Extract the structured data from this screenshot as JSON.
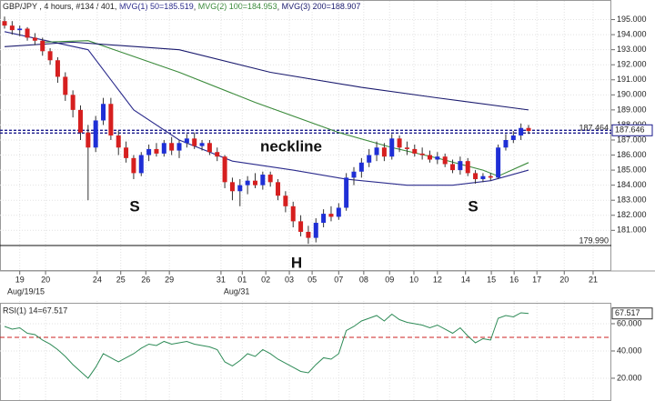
{
  "chart_data": [
    {
      "type": "candlestick",
      "title": "GBP/JPY , 4 hours, #134 / 401,",
      "up_color": "#1f2fd6",
      "down_color": "#d61f1f",
      "candles": {
        "open": [
          194.9,
          194.6,
          194.3,
          194.4,
          193.8,
          193.6,
          192.9,
          192.3,
          191.2,
          190.0,
          189.0,
          187.5,
          186.5,
          188.3,
          189.4,
          187.3,
          186.5,
          185.8,
          184.8,
          186.0,
          186.4,
          186.1,
          186.8,
          186.3,
          186.8,
          187.1,
          186.6,
          186.8,
          186.2,
          185.9,
          184.2,
          183.6,
          184.0,
          184.3,
          184.0,
          184.7,
          184.2,
          183.3,
          182.6,
          181.6,
          180.9,
          180.5,
          181.5,
          182.1,
          181.9,
          182.5,
          184.5,
          184.9,
          185.5,
          186.0,
          186.5,
          185.9,
          187.1,
          186.5,
          186.4,
          186.1,
          186.0,
          185.7,
          185.9,
          185.4,
          185.0,
          185.6,
          184.8,
          184.4,
          184.6,
          184.5,
          186.5,
          187.0,
          187.3,
          187.8
        ],
        "high": [
          195.2,
          194.9,
          194.6,
          194.5,
          194.1,
          193.8,
          193.1,
          192.5,
          191.5,
          190.3,
          189.3,
          188.0,
          188.6,
          189.8,
          189.8,
          187.6,
          186.9,
          186.0,
          186.2,
          186.7,
          186.8,
          187.0,
          187.2,
          187.0,
          187.4,
          187.5,
          187.0,
          187.0,
          186.5,
          186.0,
          184.5,
          184.4,
          184.6,
          184.8,
          184.9,
          184.9,
          184.4,
          183.6,
          182.9,
          182.0,
          181.3,
          181.8,
          182.4,
          182.6,
          182.8,
          184.8,
          185.2,
          185.8,
          186.4,
          186.9,
          186.8,
          187.4,
          187.3,
          186.9,
          186.7,
          186.5,
          186.3,
          186.2,
          186.1,
          185.7,
          185.9,
          185.8,
          185.0,
          184.8,
          184.8,
          186.7,
          187.4,
          187.6,
          188.1,
          188.0
        ],
        "low": [
          194.4,
          194.0,
          193.9,
          193.6,
          193.3,
          192.6,
          192.0,
          190.8,
          189.6,
          188.5,
          187.0,
          183.0,
          186.2,
          188.0,
          187.0,
          186.0,
          185.5,
          184.4,
          184.6,
          185.6,
          185.9,
          185.9,
          186.0,
          185.8,
          186.5,
          186.4,
          186.3,
          186.0,
          185.6,
          183.8,
          183.0,
          182.6,
          183.4,
          183.8,
          183.7,
          183.9,
          183.0,
          182.2,
          181.2,
          180.6,
          180.1,
          180.2,
          181.2,
          181.6,
          181.7,
          182.3,
          184.0,
          184.5,
          185.2,
          185.6,
          185.6,
          185.7,
          186.2,
          186.0,
          185.9,
          185.7,
          185.5,
          185.4,
          185.2,
          184.8,
          184.7,
          184.6,
          184.1,
          184.2,
          184.3,
          184.4,
          186.3,
          186.8,
          187.0,
          187.4
        ],
        "close": [
          194.6,
          194.3,
          194.4,
          193.8,
          193.6,
          192.9,
          192.3,
          191.2,
          190.0,
          189.0,
          187.5,
          186.5,
          188.3,
          189.4,
          187.3,
          186.5,
          185.8,
          184.8,
          186.0,
          186.4,
          186.1,
          186.8,
          186.3,
          186.8,
          187.1,
          186.6,
          186.8,
          186.2,
          185.9,
          184.2,
          183.6,
          184.0,
          184.3,
          184.0,
          184.7,
          184.2,
          183.3,
          182.6,
          181.6,
          180.9,
          180.5,
          181.5,
          182.1,
          181.9,
          182.5,
          184.5,
          184.9,
          185.5,
          186.0,
          186.5,
          185.9,
          187.1,
          186.5,
          186.4,
          186.1,
          186.0,
          185.7,
          185.9,
          185.4,
          185.0,
          185.6,
          184.8,
          184.4,
          184.6,
          184.5,
          186.5,
          187.0,
          187.3,
          187.8,
          187.6
        ]
      },
      "series": [
        {
          "name": "MVG(1) 50=185.519",
          "color": "#2b2b8c",
          "x": [
            0,
            11,
            17,
            23,
            30,
            38,
            45,
            53,
            59,
            64,
            69
          ],
          "values": [
            194.2,
            193.0,
            189.0,
            187.0,
            185.6,
            185.0,
            184.4,
            184.0,
            184.0,
            184.3,
            185.0
          ]
        },
        {
          "name": "MVG(2) 100=184.953",
          "color": "#3a8a3a",
          "x": [
            5,
            11,
            23,
            33,
            44,
            51,
            57,
            63,
            65,
            69
          ],
          "values": [
            193.5,
            193.6,
            191.5,
            189.5,
            187.5,
            186.5,
            185.8,
            185.0,
            184.6,
            185.5
          ]
        },
        {
          "name": "MVG(3) 200=188.907",
          "color": "#1a1a6e",
          "x": [
            0,
            9,
            23,
            35,
            47,
            57,
            69
          ],
          "values": [
            193.2,
            193.5,
            193.0,
            191.5,
            190.5,
            189.8,
            189.0
          ]
        }
      ],
      "levels": [
        187.464,
        {
          "value": 179.99,
          "label": "179.990"
        }
      ],
      "last_price": 187.646,
      "annotations": [
        "neckline",
        "S",
        "H",
        "S"
      ],
      "xlim": [
        -0.6,
        79.9
      ],
      "xticks": [
        {
          "value": 2.0,
          "label": "19"
        },
        {
          "value": 5.4,
          "label": "20"
        },
        {
          "value": 12.2,
          "label": "24"
        },
        {
          "value": 15.3,
          "label": "25"
        },
        {
          "value": 18.6,
          "label": "26"
        },
        {
          "value": 21.7,
          "label": "29"
        },
        {
          "value": 28.5,
          "label": "31"
        },
        {
          "value": 31.3,
          "label": "01"
        },
        {
          "value": 34.4,
          "label": "02"
        },
        {
          "value": 37.5,
          "label": "03"
        },
        {
          "value": 40.5,
          "label": "05"
        },
        {
          "value": 44.0,
          "label": "07"
        },
        {
          "value": 47.3,
          "label": "08"
        },
        {
          "value": 50.7,
          "label": "09"
        },
        {
          "value": 53.9,
          "label": "10"
        },
        {
          "value": 57.0,
          "label": "12"
        },
        {
          "value": 60.7,
          "label": "14"
        },
        {
          "value": 64.1,
          "label": "15"
        },
        {
          "value": 67.1,
          "label": "16"
        },
        {
          "value": 70.1,
          "label": "17"
        },
        {
          "value": 73.7,
          "label": "20"
        },
        {
          "value": 77.5,
          "label": "21"
        }
      ],
      "xticks_month": [
        {
          "value": 0,
          "label": "Aug/19/15"
        },
        {
          "value": 28.5,
          "label": "Aug/31"
        }
      ],
      "ylim": [
        178.3,
        196
      ],
      "yticks": [
        {
          "value": 181,
          "label": "181.000"
        },
        {
          "value": 182,
          "label": "182.000"
        },
        {
          "value": 183,
          "label": "183.000"
        },
        {
          "value": 184,
          "label": "184.000"
        },
        {
          "value": 185,
          "label": "185.000"
        },
        {
          "value": 186,
          "label": "186.000"
        },
        {
          "value": 187,
          "label": "187.000"
        },
        {
          "value": 188,
          "label": "188.000"
        },
        {
          "value": 189,
          "label": "189.000"
        },
        {
          "value": 190,
          "label": "190.000"
        },
        {
          "value": 191,
          "label": "191.000"
        },
        {
          "value": 192,
          "label": "192.000"
        },
        {
          "value": 193,
          "label": "193.000"
        },
        {
          "value": 194,
          "label": "194.000"
        },
        {
          "value": 195,
          "label": "195.000"
        }
      ],
      "grid": true
    },
    {
      "type": "line",
      "title": "RSI(1) 14=67.517",
      "last_value": 67.517,
      "series": [
        {
          "name": "RSI",
          "color": "#2e8b57",
          "values": [
            58,
            56,
            57,
            53,
            52,
            48,
            45,
            41,
            36,
            30,
            25,
            20,
            28,
            38,
            35,
            32,
            35,
            38,
            42,
            45,
            44,
            47,
            45,
            46,
            47,
            45,
            44,
            43,
            41,
            32,
            29,
            33,
            38,
            36,
            41,
            38,
            34,
            31,
            28,
            25,
            24,
            30,
            35,
            34,
            38,
            55,
            58,
            62,
            64,
            66,
            62,
            67,
            63,
            61,
            60,
            59,
            57,
            59,
            56,
            53,
            57,
            51,
            46,
            49,
            48,
            64,
            66,
            65,
            68,
            67.5
          ]
        }
      ],
      "reference_line": 50,
      "reference_color": "#cc2222",
      "ylim": [
        3.3,
        74
      ],
      "yticks": [
        {
          "value": 20,
          "label": "20.000"
        },
        {
          "value": 40,
          "label": "40.000"
        },
        {
          "value": 60,
          "label": "60.000"
        }
      ],
      "grid": true
    }
  ]
}
